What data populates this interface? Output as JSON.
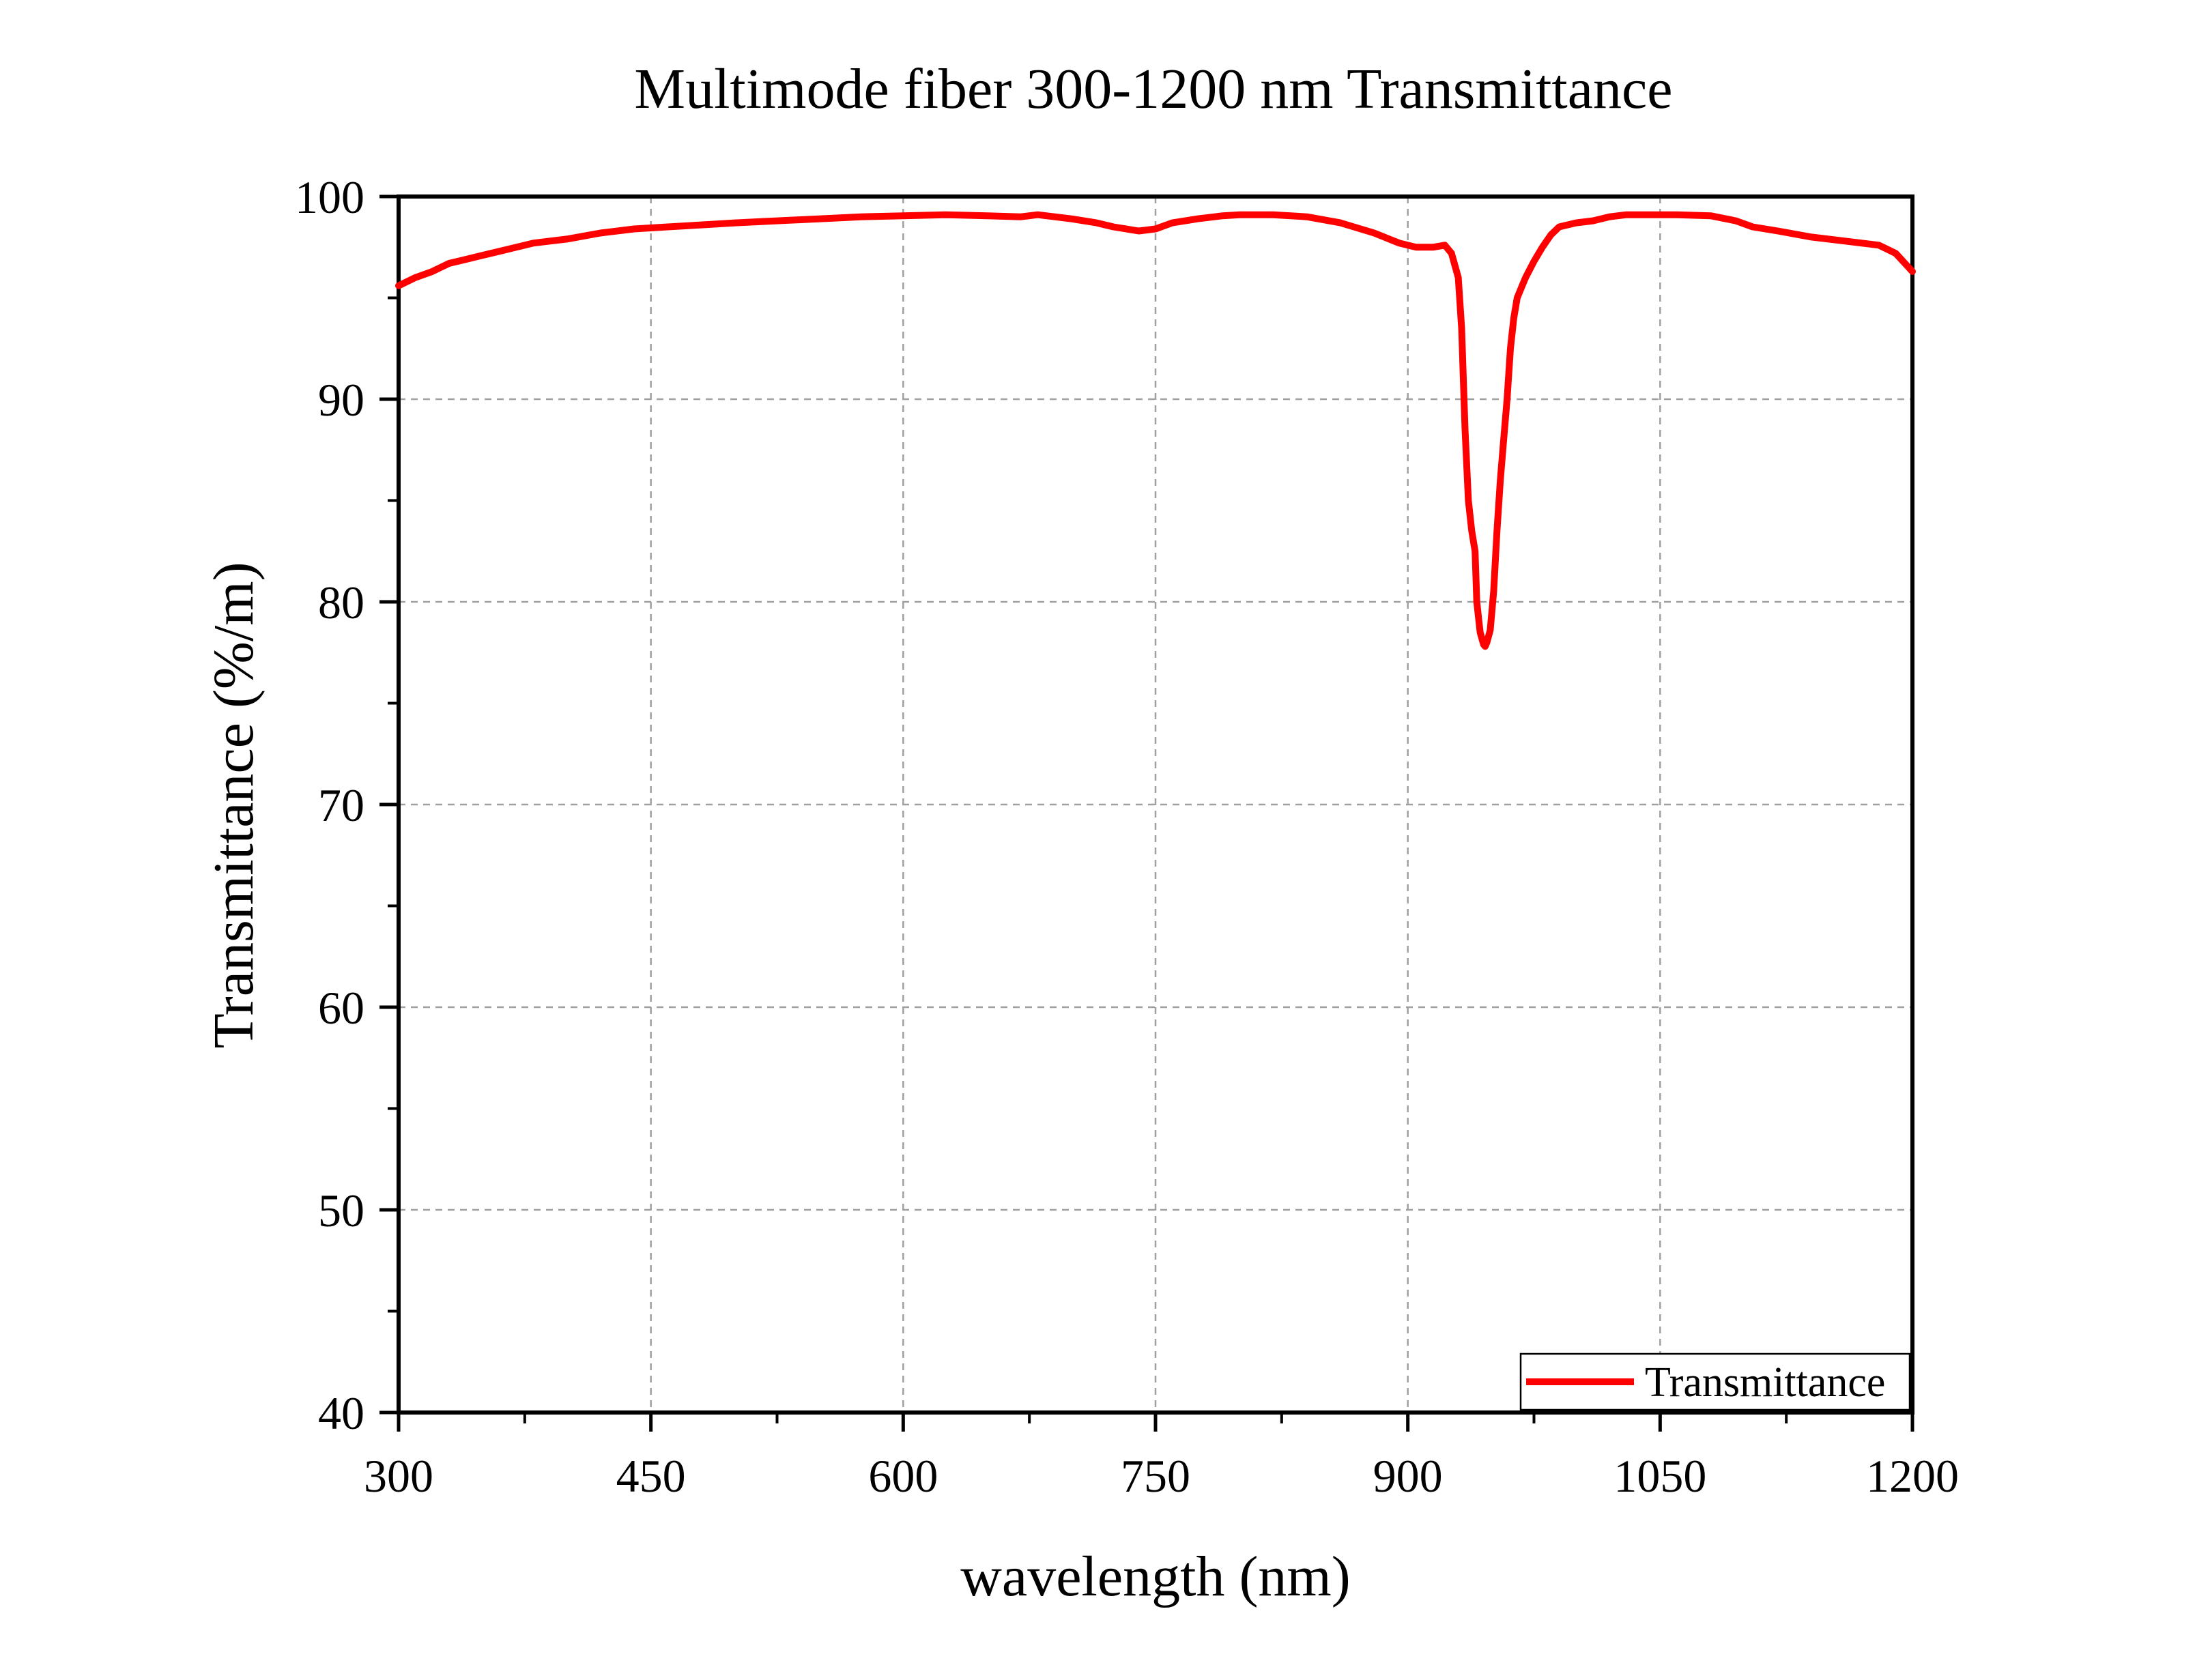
{
  "chart_data": {
    "type": "line",
    "title": "Multimode fiber 300-1200 nm Transmittance",
    "xlabel": "wavelength (nm)",
    "ylabel": "Transmittance (%/m)",
    "xlim": [
      300,
      1200
    ],
    "ylim": [
      40,
      100
    ],
    "xticks": [
      300,
      450,
      600,
      750,
      900,
      1050,
      1200
    ],
    "yticks": [
      40,
      50,
      60,
      70,
      80,
      90,
      100
    ],
    "grid": true,
    "legend_position": "bottom-right",
    "series": [
      {
        "name": "Transmittance",
        "color": "#ff0000",
        "x": [
          300,
          310,
          320,
          330,
          340,
          350,
          360,
          370,
          380,
          390,
          400,
          420,
          440,
          460,
          480,
          500,
          525,
          550,
          575,
          600,
          625,
          650,
          670,
          680,
          700,
          715,
          725,
          740,
          750,
          760,
          775,
          790,
          800,
          820,
          840,
          860,
          880,
          895,
          905,
          915,
          922,
          926,
          930,
          932,
          934,
          936,
          938,
          940,
          941,
          943,
          945,
          946,
          947,
          949,
          951,
          953,
          955,
          957,
          959,
          961,
          963,
          965,
          968,
          970,
          975,
          980,
          985,
          990,
          1000,
          1010,
          1020,
          1030,
          1040,
          1060,
          1080,
          1095,
          1105,
          1120,
          1140,
          1160,
          1180,
          1190,
          1200
        ],
        "y": [
          95.6,
          96.0,
          96.3,
          96.7,
          96.9,
          97.1,
          97.3,
          97.5,
          97.7,
          97.8,
          97.9,
          98.2,
          98.4,
          98.5,
          98.6,
          98.7,
          98.8,
          98.9,
          99.0,
          99.05,
          99.1,
          99.05,
          99.0,
          99.1,
          98.9,
          98.7,
          98.5,
          98.3,
          98.4,
          98.7,
          98.9,
          99.05,
          99.1,
          99.1,
          99.0,
          98.7,
          98.2,
          97.7,
          97.5,
          97.5,
          97.6,
          97.2,
          96.0,
          93.5,
          88.5,
          85.0,
          83.5,
          82.5,
          80.0,
          78.5,
          77.9,
          77.8,
          78.0,
          78.6,
          80.5,
          83.5,
          86.0,
          88.0,
          90.0,
          92.5,
          94.0,
          95.0,
          95.6,
          96.0,
          96.8,
          97.5,
          98.1,
          98.5,
          98.7,
          98.8,
          99.0,
          99.1,
          99.1,
          99.1,
          99.05,
          98.8,
          98.5,
          98.3,
          98.0,
          97.8,
          97.6,
          97.2,
          96.3
        ]
      }
    ]
  }
}
